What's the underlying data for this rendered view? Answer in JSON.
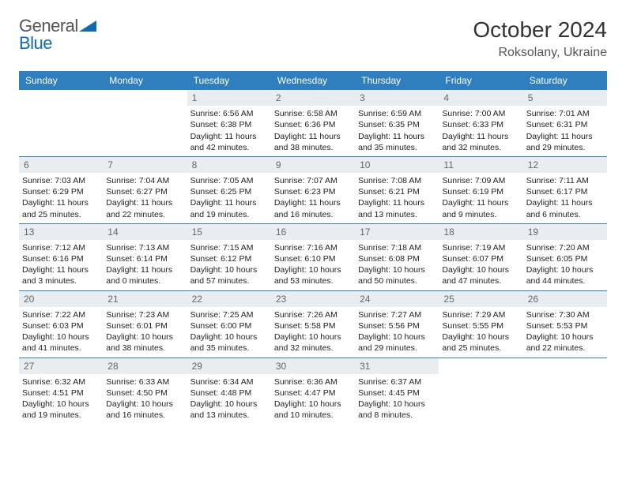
{
  "brand": {
    "word1": "General",
    "word2": "Blue",
    "logoColor": "#0f6ab4",
    "textColor": "#555555"
  },
  "title": "October 2024",
  "location": "Roksolany, Ukraine",
  "colors": {
    "headerBar": "#2f7fbf",
    "dayNumBg": "#e9edef",
    "weekBorder": "#2f7fbf"
  },
  "daysOfWeek": [
    "Sunday",
    "Monday",
    "Tuesday",
    "Wednesday",
    "Thursday",
    "Friday",
    "Saturday"
  ],
  "weeks": [
    [
      {
        "n": "",
        "lines": []
      },
      {
        "n": "",
        "lines": []
      },
      {
        "n": "1",
        "lines": [
          "Sunrise: 6:56 AM",
          "Sunset: 6:38 PM",
          "Daylight: 11 hours and 42 minutes."
        ]
      },
      {
        "n": "2",
        "lines": [
          "Sunrise: 6:58 AM",
          "Sunset: 6:36 PM",
          "Daylight: 11 hours and 38 minutes."
        ]
      },
      {
        "n": "3",
        "lines": [
          "Sunrise: 6:59 AM",
          "Sunset: 6:35 PM",
          "Daylight: 11 hours and 35 minutes."
        ]
      },
      {
        "n": "4",
        "lines": [
          "Sunrise: 7:00 AM",
          "Sunset: 6:33 PM",
          "Daylight: 11 hours and 32 minutes."
        ]
      },
      {
        "n": "5",
        "lines": [
          "Sunrise: 7:01 AM",
          "Sunset: 6:31 PM",
          "Daylight: 11 hours and 29 minutes."
        ]
      }
    ],
    [
      {
        "n": "6",
        "lines": [
          "Sunrise: 7:03 AM",
          "Sunset: 6:29 PM",
          "Daylight: 11 hours and 25 minutes."
        ]
      },
      {
        "n": "7",
        "lines": [
          "Sunrise: 7:04 AM",
          "Sunset: 6:27 PM",
          "Daylight: 11 hours and 22 minutes."
        ]
      },
      {
        "n": "8",
        "lines": [
          "Sunrise: 7:05 AM",
          "Sunset: 6:25 PM",
          "Daylight: 11 hours and 19 minutes."
        ]
      },
      {
        "n": "9",
        "lines": [
          "Sunrise: 7:07 AM",
          "Sunset: 6:23 PM",
          "Daylight: 11 hours and 16 minutes."
        ]
      },
      {
        "n": "10",
        "lines": [
          "Sunrise: 7:08 AM",
          "Sunset: 6:21 PM",
          "Daylight: 11 hours and 13 minutes."
        ]
      },
      {
        "n": "11",
        "lines": [
          "Sunrise: 7:09 AM",
          "Sunset: 6:19 PM",
          "Daylight: 11 hours and 9 minutes."
        ]
      },
      {
        "n": "12",
        "lines": [
          "Sunrise: 7:11 AM",
          "Sunset: 6:17 PM",
          "Daylight: 11 hours and 6 minutes."
        ]
      }
    ],
    [
      {
        "n": "13",
        "lines": [
          "Sunrise: 7:12 AM",
          "Sunset: 6:16 PM",
          "Daylight: 11 hours and 3 minutes."
        ]
      },
      {
        "n": "14",
        "lines": [
          "Sunrise: 7:13 AM",
          "Sunset: 6:14 PM",
          "Daylight: 11 hours and 0 minutes."
        ]
      },
      {
        "n": "15",
        "lines": [
          "Sunrise: 7:15 AM",
          "Sunset: 6:12 PM",
          "Daylight: 10 hours and 57 minutes."
        ]
      },
      {
        "n": "16",
        "lines": [
          "Sunrise: 7:16 AM",
          "Sunset: 6:10 PM",
          "Daylight: 10 hours and 53 minutes."
        ]
      },
      {
        "n": "17",
        "lines": [
          "Sunrise: 7:18 AM",
          "Sunset: 6:08 PM",
          "Daylight: 10 hours and 50 minutes."
        ]
      },
      {
        "n": "18",
        "lines": [
          "Sunrise: 7:19 AM",
          "Sunset: 6:07 PM",
          "Daylight: 10 hours and 47 minutes."
        ]
      },
      {
        "n": "19",
        "lines": [
          "Sunrise: 7:20 AM",
          "Sunset: 6:05 PM",
          "Daylight: 10 hours and 44 minutes."
        ]
      }
    ],
    [
      {
        "n": "20",
        "lines": [
          "Sunrise: 7:22 AM",
          "Sunset: 6:03 PM",
          "Daylight: 10 hours and 41 minutes."
        ]
      },
      {
        "n": "21",
        "lines": [
          "Sunrise: 7:23 AM",
          "Sunset: 6:01 PM",
          "Daylight: 10 hours and 38 minutes."
        ]
      },
      {
        "n": "22",
        "lines": [
          "Sunrise: 7:25 AM",
          "Sunset: 6:00 PM",
          "Daylight: 10 hours and 35 minutes."
        ]
      },
      {
        "n": "23",
        "lines": [
          "Sunrise: 7:26 AM",
          "Sunset: 5:58 PM",
          "Daylight: 10 hours and 32 minutes."
        ]
      },
      {
        "n": "24",
        "lines": [
          "Sunrise: 7:27 AM",
          "Sunset: 5:56 PM",
          "Daylight: 10 hours and 29 minutes."
        ]
      },
      {
        "n": "25",
        "lines": [
          "Sunrise: 7:29 AM",
          "Sunset: 5:55 PM",
          "Daylight: 10 hours and 25 minutes."
        ]
      },
      {
        "n": "26",
        "lines": [
          "Sunrise: 7:30 AM",
          "Sunset: 5:53 PM",
          "Daylight: 10 hours and 22 minutes."
        ]
      }
    ],
    [
      {
        "n": "27",
        "lines": [
          "Sunrise: 6:32 AM",
          "Sunset: 4:51 PM",
          "Daylight: 10 hours and 19 minutes."
        ]
      },
      {
        "n": "28",
        "lines": [
          "Sunrise: 6:33 AM",
          "Sunset: 4:50 PM",
          "Daylight: 10 hours and 16 minutes."
        ]
      },
      {
        "n": "29",
        "lines": [
          "Sunrise: 6:34 AM",
          "Sunset: 4:48 PM",
          "Daylight: 10 hours and 13 minutes."
        ]
      },
      {
        "n": "30",
        "lines": [
          "Sunrise: 6:36 AM",
          "Sunset: 4:47 PM",
          "Daylight: 10 hours and 10 minutes."
        ]
      },
      {
        "n": "31",
        "lines": [
          "Sunrise: 6:37 AM",
          "Sunset: 4:45 PM",
          "Daylight: 10 hours and 8 minutes."
        ]
      },
      {
        "n": "",
        "lines": []
      },
      {
        "n": "",
        "lines": []
      }
    ]
  ]
}
